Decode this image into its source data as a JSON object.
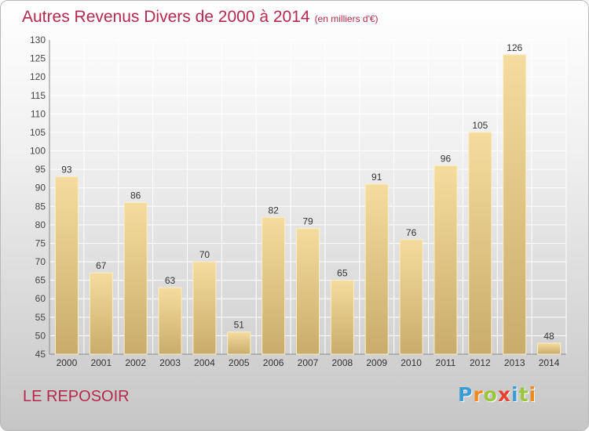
{
  "header": {
    "title": "Autres Revenus Divers de 2000 à 2014",
    "subtitle": "(en milliers d'€)"
  },
  "footer": {
    "place": "LE REPOSOIR",
    "logo_letters": [
      "P",
      "r",
      "o",
      "x",
      "i",
      "t",
      "i"
    ],
    "logo_colors": [
      "#3a9bd5",
      "#f08a1c",
      "#9bc53d",
      "#e8412c",
      "#3a9bd5",
      "#9bc53d",
      "#f08a1c"
    ]
  },
  "colors": {
    "title": "#b5294d",
    "bar_light": "#f5dc9e",
    "bar_dark": "#c9ac6b",
    "grid": "#ffffff"
  },
  "chart_data": {
    "type": "bar",
    "categories": [
      "2000",
      "2001",
      "2002",
      "2003",
      "2004",
      "2005",
      "2006",
      "2007",
      "2008",
      "2009",
      "2010",
      "2011",
      "2012",
      "2013",
      "2014"
    ],
    "values": [
      93,
      67,
      86,
      63,
      70,
      51,
      82,
      79,
      65,
      91,
      76,
      96,
      105,
      126,
      48
    ],
    "ylim": [
      45,
      130
    ],
    "yticks": [
      45,
      50,
      55,
      60,
      65,
      70,
      75,
      80,
      85,
      90,
      95,
      100,
      105,
      110,
      115,
      120,
      125,
      130
    ],
    "grid": true,
    "data_labels": true
  }
}
